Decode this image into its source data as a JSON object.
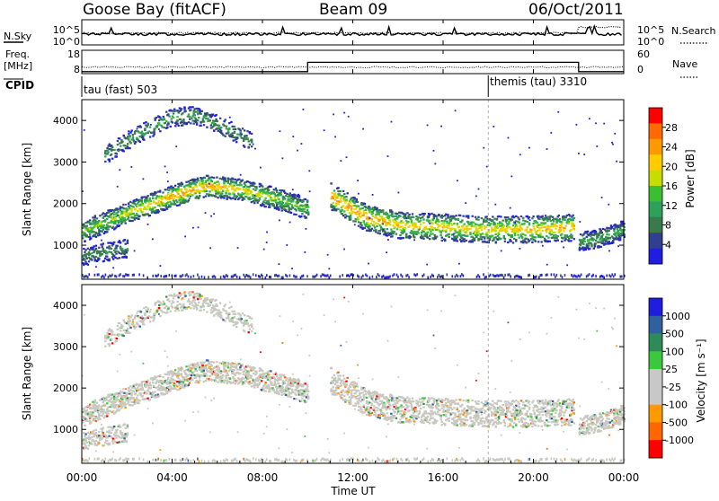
{
  "header": {
    "station": "Goose Bay (fitACF)",
    "beam": "Beam 09",
    "date": "06/Oct/2011"
  },
  "noise_panel": {
    "left_label": "N.Sky",
    "right_label": "N.Search",
    "left_ticks": [
      "10^5",
      "10^0"
    ],
    "right_ticks": [
      "10^5",
      "10^0"
    ]
  },
  "freq_panel": {
    "left_label_1": "Freq.",
    "left_label_2": "[MHz]",
    "right_label": "Nave",
    "left_ticks": [
      "18",
      "8"
    ],
    "right_ticks": [
      "60",
      "0"
    ]
  },
  "cpid": {
    "label": "CPID",
    "segments": [
      {
        "name": "tau (fast) 503",
        "start_hour": 0
      },
      {
        "name": "themis (tau) 3310",
        "start_hour": 18
      }
    ]
  },
  "power_panel": {
    "ylabel": "Slant Range [km]",
    "colorbar_label": "Power [dB]",
    "colorbar_ticks": [
      "28",
      "24",
      "20",
      "16",
      "12",
      "8",
      "4"
    ],
    "colorbar_colors": [
      "#ff0000",
      "#ff6a00",
      "#ff9900",
      "#ffcc00",
      "#c8dc00",
      "#3cbe32",
      "#2ea05a",
      "#3a7a4a",
      "#304090",
      "#1e1ee0"
    ]
  },
  "velocity_panel": {
    "ylabel": "Slant Range [km]",
    "colorbar_label": "Velocity [m s⁻¹]",
    "colorbar_ticks": [
      "1000",
      "500",
      "100",
      "25",
      "-25",
      "-100",
      "-500",
      "-1000"
    ],
    "colorbar_colors": [
      "#1e1ee0",
      "#3060a0",
      "#2e8b57",
      "#3cc83c",
      "#c8c8c8",
      "#c8c8c8",
      "#ff9900",
      "#ff6600",
      "#ff0000"
    ]
  },
  "xaxis": {
    "label": "Time UT",
    "ticks": [
      "00:00",
      "04:00",
      "08:00",
      "12:00",
      "16:00",
      "20:00",
      "00:00"
    ]
  },
  "chart_data": {
    "type": "heatmap",
    "title": "Goose Bay (fitACF) Beam 09 06/Oct/2011",
    "xlabel": "Time UT",
    "ylabel": "Slant Range [km]",
    "xlim_hours": [
      0,
      24
    ],
    "ylim_km": [
      180,
      4500
    ],
    "yticks_km": [
      1000,
      2000,
      3000,
      4000
    ],
    "power_scale_db": [
      0,
      30
    ],
    "velocity_scale_ms": [
      -1000,
      1000
    ],
    "scatter_bands": [
      {
        "name": "main",
        "hours": [
          0.0,
          2.0,
          4.0,
          5.5,
          7.0,
          8.5,
          10.0
        ],
        "range_km": [
          1350,
          1800,
          2200,
          2450,
          2350,
          2150,
          1900
        ],
        "power_db": [
          12,
          16,
          20,
          20,
          17,
          14,
          12
        ]
      },
      {
        "name": "upper",
        "hours": [
          1.0,
          2.5,
          4.0,
          5.0,
          6.5,
          7.5
        ],
        "range_km": [
          3200,
          3700,
          4100,
          4150,
          3800,
          3500
        ],
        "power_db": [
          8,
          10,
          10,
          10,
          9,
          8
        ]
      },
      {
        "name": "lower",
        "hours": [
          0.0,
          1.0,
          2.0
        ],
        "range_km": [
          750,
          850,
          950
        ],
        "power_db": [
          8,
          8,
          8
        ]
      },
      {
        "name": "afternoon",
        "hours": [
          11.0,
          12.5,
          14.0,
          16.0,
          18.0,
          20.0,
          21.8
        ],
        "range_km": [
          2200,
          1700,
          1500,
          1450,
          1400,
          1400,
          1450
        ],
        "power_db": [
          20,
          20,
          18,
          17,
          17,
          18,
          20
        ]
      },
      {
        "name": "late",
        "hours": [
          22.0,
          23.0,
          24.0
        ],
        "range_km": [
          1100,
          1200,
          1400
        ],
        "power_db": [
          10,
          10,
          10
        ]
      }
    ],
    "nsky_level": "~10^1",
    "nsearch_level": "~10^2",
    "frequency_mhz": [
      {
        "hours": [
          0,
          10
        ],
        "value": 10
      },
      {
        "hours": [
          10,
          22
        ],
        "value": 14
      },
      {
        "hours": [
          22,
          24
        ],
        "value": 10
      }
    ],
    "cpid_change_hour": 18
  }
}
